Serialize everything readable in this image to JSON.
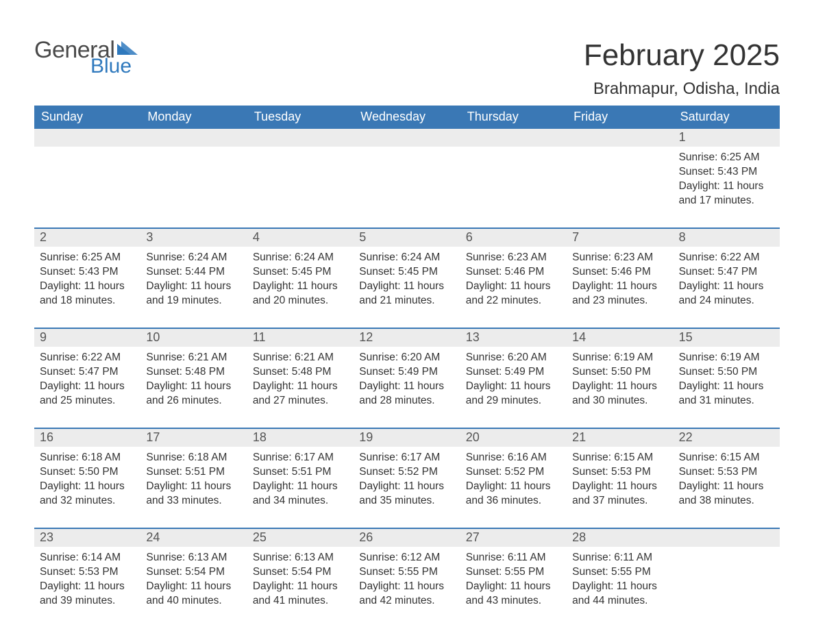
{
  "brand": {
    "general": "General",
    "blue": "Blue",
    "accent": "#2f79bd"
  },
  "title": "February 2025",
  "location": "Brahmapur, Odisha, India",
  "colors": {
    "header_bg": "#3a78b5",
    "header_text": "#ffffff",
    "daynum_bg": "#ececec",
    "body_text": "#333333",
    "week_divider": "#3a78b5",
    "page_bg": "#ffffff"
  },
  "fonts": {
    "title_size_pt": 33,
    "location_size_pt": 18,
    "dayname_size_pt": 14,
    "body_size_pt": 12
  },
  "day_names": [
    "Sunday",
    "Monday",
    "Tuesday",
    "Wednesday",
    "Thursday",
    "Friday",
    "Saturday"
  ],
  "weeks": [
    [
      {
        "n": "",
        "sr": "",
        "ss": "",
        "dl1": "",
        "dl2": ""
      },
      {
        "n": "",
        "sr": "",
        "ss": "",
        "dl1": "",
        "dl2": ""
      },
      {
        "n": "",
        "sr": "",
        "ss": "",
        "dl1": "",
        "dl2": ""
      },
      {
        "n": "",
        "sr": "",
        "ss": "",
        "dl1": "",
        "dl2": ""
      },
      {
        "n": "",
        "sr": "",
        "ss": "",
        "dl1": "",
        "dl2": ""
      },
      {
        "n": "",
        "sr": "",
        "ss": "",
        "dl1": "",
        "dl2": ""
      },
      {
        "n": "1",
        "sr": "Sunrise: 6:25 AM",
        "ss": "Sunset: 5:43 PM",
        "dl1": "Daylight: 11 hours",
        "dl2": "and 17 minutes."
      }
    ],
    [
      {
        "n": "2",
        "sr": "Sunrise: 6:25 AM",
        "ss": "Sunset: 5:43 PM",
        "dl1": "Daylight: 11 hours",
        "dl2": "and 18 minutes."
      },
      {
        "n": "3",
        "sr": "Sunrise: 6:24 AM",
        "ss": "Sunset: 5:44 PM",
        "dl1": "Daylight: 11 hours",
        "dl2": "and 19 minutes."
      },
      {
        "n": "4",
        "sr": "Sunrise: 6:24 AM",
        "ss": "Sunset: 5:45 PM",
        "dl1": "Daylight: 11 hours",
        "dl2": "and 20 minutes."
      },
      {
        "n": "5",
        "sr": "Sunrise: 6:24 AM",
        "ss": "Sunset: 5:45 PM",
        "dl1": "Daylight: 11 hours",
        "dl2": "and 21 minutes."
      },
      {
        "n": "6",
        "sr": "Sunrise: 6:23 AM",
        "ss": "Sunset: 5:46 PM",
        "dl1": "Daylight: 11 hours",
        "dl2": "and 22 minutes."
      },
      {
        "n": "7",
        "sr": "Sunrise: 6:23 AM",
        "ss": "Sunset: 5:46 PM",
        "dl1": "Daylight: 11 hours",
        "dl2": "and 23 minutes."
      },
      {
        "n": "8",
        "sr": "Sunrise: 6:22 AM",
        "ss": "Sunset: 5:47 PM",
        "dl1": "Daylight: 11 hours",
        "dl2": "and 24 minutes."
      }
    ],
    [
      {
        "n": "9",
        "sr": "Sunrise: 6:22 AM",
        "ss": "Sunset: 5:47 PM",
        "dl1": "Daylight: 11 hours",
        "dl2": "and 25 minutes."
      },
      {
        "n": "10",
        "sr": "Sunrise: 6:21 AM",
        "ss": "Sunset: 5:48 PM",
        "dl1": "Daylight: 11 hours",
        "dl2": "and 26 minutes."
      },
      {
        "n": "11",
        "sr": "Sunrise: 6:21 AM",
        "ss": "Sunset: 5:48 PM",
        "dl1": "Daylight: 11 hours",
        "dl2": "and 27 minutes."
      },
      {
        "n": "12",
        "sr": "Sunrise: 6:20 AM",
        "ss": "Sunset: 5:49 PM",
        "dl1": "Daylight: 11 hours",
        "dl2": "and 28 minutes."
      },
      {
        "n": "13",
        "sr": "Sunrise: 6:20 AM",
        "ss": "Sunset: 5:49 PM",
        "dl1": "Daylight: 11 hours",
        "dl2": "and 29 minutes."
      },
      {
        "n": "14",
        "sr": "Sunrise: 6:19 AM",
        "ss": "Sunset: 5:50 PM",
        "dl1": "Daylight: 11 hours",
        "dl2": "and 30 minutes."
      },
      {
        "n": "15",
        "sr": "Sunrise: 6:19 AM",
        "ss": "Sunset: 5:50 PM",
        "dl1": "Daylight: 11 hours",
        "dl2": "and 31 minutes."
      }
    ],
    [
      {
        "n": "16",
        "sr": "Sunrise: 6:18 AM",
        "ss": "Sunset: 5:50 PM",
        "dl1": "Daylight: 11 hours",
        "dl2": "and 32 minutes."
      },
      {
        "n": "17",
        "sr": "Sunrise: 6:18 AM",
        "ss": "Sunset: 5:51 PM",
        "dl1": "Daylight: 11 hours",
        "dl2": "and 33 minutes."
      },
      {
        "n": "18",
        "sr": "Sunrise: 6:17 AM",
        "ss": "Sunset: 5:51 PM",
        "dl1": "Daylight: 11 hours",
        "dl2": "and 34 minutes."
      },
      {
        "n": "19",
        "sr": "Sunrise: 6:17 AM",
        "ss": "Sunset: 5:52 PM",
        "dl1": "Daylight: 11 hours",
        "dl2": "and 35 minutes."
      },
      {
        "n": "20",
        "sr": "Sunrise: 6:16 AM",
        "ss": "Sunset: 5:52 PM",
        "dl1": "Daylight: 11 hours",
        "dl2": "and 36 minutes."
      },
      {
        "n": "21",
        "sr": "Sunrise: 6:15 AM",
        "ss": "Sunset: 5:53 PM",
        "dl1": "Daylight: 11 hours",
        "dl2": "and 37 minutes."
      },
      {
        "n": "22",
        "sr": "Sunrise: 6:15 AM",
        "ss": "Sunset: 5:53 PM",
        "dl1": "Daylight: 11 hours",
        "dl2": "and 38 minutes."
      }
    ],
    [
      {
        "n": "23",
        "sr": "Sunrise: 6:14 AM",
        "ss": "Sunset: 5:53 PM",
        "dl1": "Daylight: 11 hours",
        "dl2": "and 39 minutes."
      },
      {
        "n": "24",
        "sr": "Sunrise: 6:13 AM",
        "ss": "Sunset: 5:54 PM",
        "dl1": "Daylight: 11 hours",
        "dl2": "and 40 minutes."
      },
      {
        "n": "25",
        "sr": "Sunrise: 6:13 AM",
        "ss": "Sunset: 5:54 PM",
        "dl1": "Daylight: 11 hours",
        "dl2": "and 41 minutes."
      },
      {
        "n": "26",
        "sr": "Sunrise: 6:12 AM",
        "ss": "Sunset: 5:55 PM",
        "dl1": "Daylight: 11 hours",
        "dl2": "and 42 minutes."
      },
      {
        "n": "27",
        "sr": "Sunrise: 6:11 AM",
        "ss": "Sunset: 5:55 PM",
        "dl1": "Daylight: 11 hours",
        "dl2": "and 43 minutes."
      },
      {
        "n": "28",
        "sr": "Sunrise: 6:11 AM",
        "ss": "Sunset: 5:55 PM",
        "dl1": "Daylight: 11 hours",
        "dl2": "and 44 minutes."
      },
      {
        "n": "",
        "sr": "",
        "ss": "",
        "dl1": "",
        "dl2": ""
      }
    ]
  ]
}
